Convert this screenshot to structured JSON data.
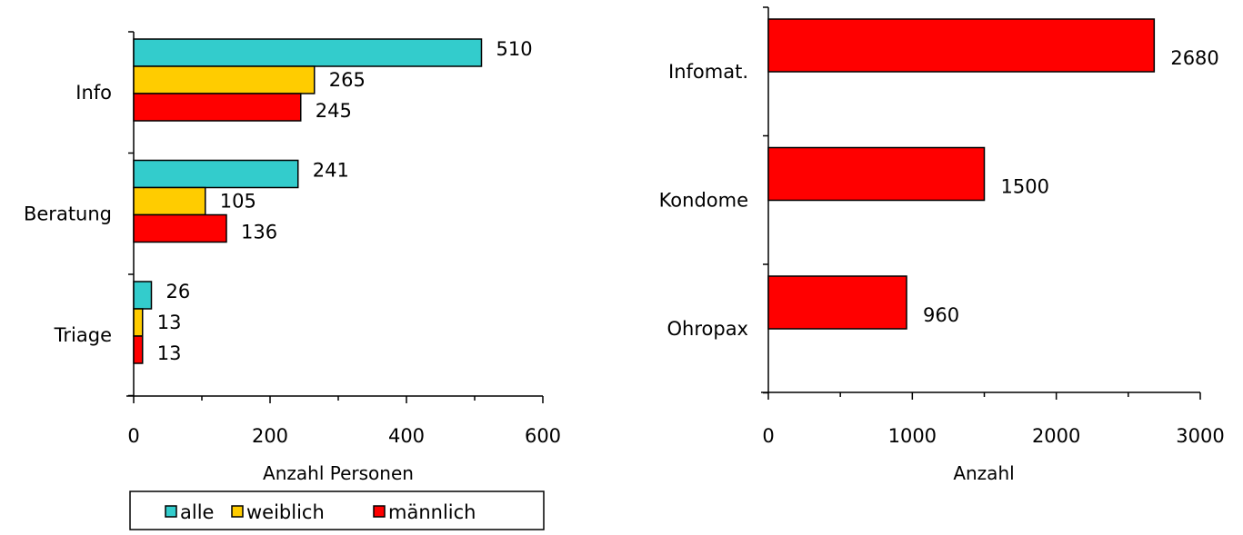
{
  "chart_data": [
    {
      "type": "bar",
      "orientation": "horizontal",
      "categories": [
        "Info",
        "Beratung",
        "Triage"
      ],
      "series": [
        {
          "name": "alle",
          "values": [
            510,
            241,
            26
          ],
          "color": "#33CCCC"
        },
        {
          "name": "weiblich",
          "values": [
            265,
            105,
            13
          ],
          "color": "#FFCC00"
        },
        {
          "name": "männlich",
          "values": [
            245,
            136,
            13
          ],
          "color": "#FF0000"
        }
      ],
      "xlabel": "Anzahl Personen",
      "ylabel": "",
      "xlim": [
        0,
        600
      ],
      "x_ticks": [
        0,
        200,
        400,
        600
      ],
      "grid": false,
      "legend": "bottom",
      "data_labels": true
    },
    {
      "type": "bar",
      "orientation": "horizontal",
      "categories": [
        "Infomat.",
        "Kondome",
        "Ohropax"
      ],
      "series": [
        {
          "values": [
            2680,
            1500,
            960
          ],
          "color": "#FF0000"
        }
      ],
      "xlabel": "Anzahl",
      "ylabel": "",
      "xlim": [
        0,
        3000
      ],
      "x_ticks": [
        0,
        1000,
        2000,
        3000
      ],
      "grid": false,
      "legend": "none",
      "data_labels": true
    }
  ]
}
